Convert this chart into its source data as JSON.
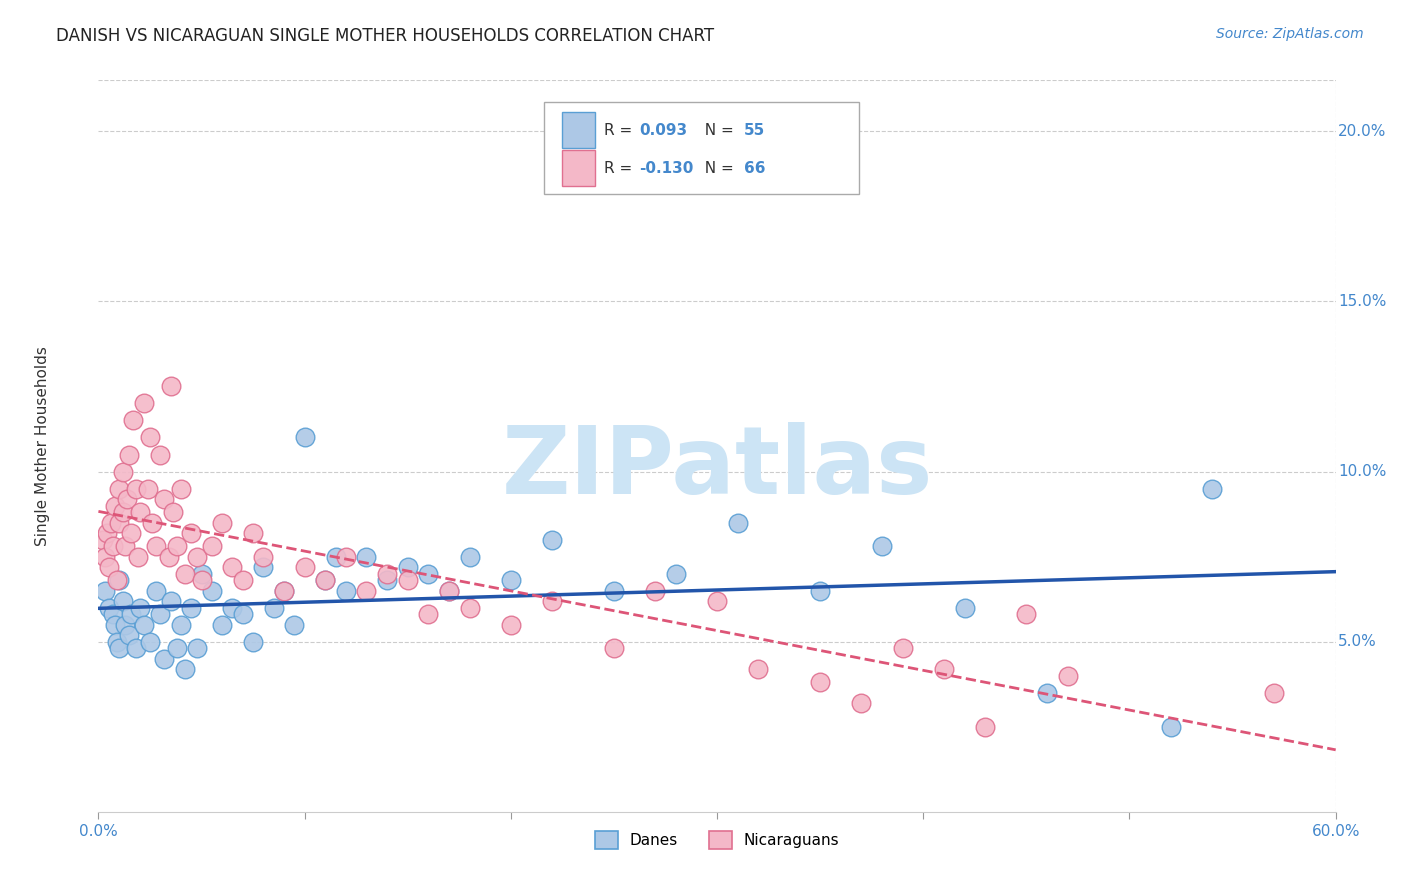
{
  "title": "DANISH VS NICARAGUAN SINGLE MOTHER HOUSEHOLDS CORRELATION CHART",
  "source": "Source: ZipAtlas.com",
  "ylabel": "Single Mother Households",
  "xlim": [
    0.0,
    0.6
  ],
  "ylim": [
    0.0,
    0.215
  ],
  "xticks": [
    0.0,
    0.1,
    0.2,
    0.3,
    0.4,
    0.5,
    0.6
  ],
  "xticklabels_show": [
    "0.0%",
    "",
    "",
    "",
    "",
    "",
    "60.0%"
  ],
  "yticks_right": [
    0.05,
    0.1,
    0.15,
    0.2
  ],
  "ytick_labels_right": [
    "5.0%",
    "10.0%",
    "15.0%",
    "20.0%"
  ],
  "legend_text_r1": "R = ",
  "legend_val_r1": "0.093",
  "legend_text_n1": "N = ",
  "legend_val_n1": "55",
  "legend_text_r2": "R = ",
  "legend_val_r2": "-0.130",
  "legend_text_n2": "N = ",
  "legend_val_n2": "66",
  "danes_color": "#adc8e6",
  "danes_edge_color": "#5a9fd4",
  "nica_color": "#f4b8c8",
  "nica_edge_color": "#e07090",
  "danes_line_color": "#2255aa",
  "nica_line_color": "#dd5577",
  "watermark_text": "ZIPatlas",
  "watermark_color": "#cce4f5",
  "grid_color": "#cccccc",
  "title_fontsize": 12,
  "tick_fontsize": 11,
  "source_fontsize": 10,
  "background_color": "#ffffff",
  "danes_x": [
    0.003,
    0.005,
    0.007,
    0.008,
    0.009,
    0.01,
    0.01,
    0.012,
    0.013,
    0.015,
    0.016,
    0.018,
    0.02,
    0.022,
    0.025,
    0.028,
    0.03,
    0.032,
    0.035,
    0.038,
    0.04,
    0.042,
    0.045,
    0.048,
    0.05,
    0.055,
    0.06,
    0.065,
    0.07,
    0.075,
    0.08,
    0.085,
    0.09,
    0.095,
    0.1,
    0.11,
    0.115,
    0.12,
    0.13,
    0.14,
    0.15,
    0.16,
    0.17,
    0.18,
    0.2,
    0.22,
    0.25,
    0.28,
    0.31,
    0.35,
    0.38,
    0.42,
    0.46,
    0.52,
    0.54
  ],
  "danes_y": [
    0.065,
    0.06,
    0.058,
    0.055,
    0.05,
    0.068,
    0.048,
    0.062,
    0.055,
    0.052,
    0.058,
    0.048,
    0.06,
    0.055,
    0.05,
    0.065,
    0.058,
    0.045,
    0.062,
    0.048,
    0.055,
    0.042,
    0.06,
    0.048,
    0.07,
    0.065,
    0.055,
    0.06,
    0.058,
    0.05,
    0.072,
    0.06,
    0.065,
    0.055,
    0.11,
    0.068,
    0.075,
    0.065,
    0.075,
    0.068,
    0.072,
    0.07,
    0.065,
    0.075,
    0.068,
    0.08,
    0.065,
    0.07,
    0.085,
    0.065,
    0.078,
    0.06,
    0.035,
    0.025,
    0.095
  ],
  "nica_x": [
    0.002,
    0.003,
    0.004,
    0.005,
    0.006,
    0.007,
    0.008,
    0.009,
    0.01,
    0.01,
    0.012,
    0.012,
    0.013,
    0.014,
    0.015,
    0.016,
    0.017,
    0.018,
    0.019,
    0.02,
    0.022,
    0.024,
    0.025,
    0.026,
    0.028,
    0.03,
    0.032,
    0.034,
    0.035,
    0.036,
    0.038,
    0.04,
    0.042,
    0.045,
    0.048,
    0.05,
    0.055,
    0.06,
    0.065,
    0.07,
    0.075,
    0.08,
    0.09,
    0.1,
    0.11,
    0.12,
    0.13,
    0.14,
    0.15,
    0.16,
    0.17,
    0.18,
    0.2,
    0.22,
    0.25,
    0.27,
    0.3,
    0.32,
    0.35,
    0.37,
    0.39,
    0.41,
    0.43,
    0.45,
    0.47,
    0.57
  ],
  "nica_y": [
    0.08,
    0.075,
    0.082,
    0.072,
    0.085,
    0.078,
    0.09,
    0.068,
    0.095,
    0.085,
    0.1,
    0.088,
    0.078,
    0.092,
    0.105,
    0.082,
    0.115,
    0.095,
    0.075,
    0.088,
    0.12,
    0.095,
    0.11,
    0.085,
    0.078,
    0.105,
    0.092,
    0.075,
    0.125,
    0.088,
    0.078,
    0.095,
    0.07,
    0.082,
    0.075,
    0.068,
    0.078,
    0.085,
    0.072,
    0.068,
    0.082,
    0.075,
    0.065,
    0.072,
    0.068,
    0.075,
    0.065,
    0.07,
    0.068,
    0.058,
    0.065,
    0.06,
    0.055,
    0.062,
    0.048,
    0.065,
    0.062,
    0.042,
    0.038,
    0.032,
    0.048,
    0.042,
    0.025,
    0.058,
    0.04,
    0.035
  ]
}
